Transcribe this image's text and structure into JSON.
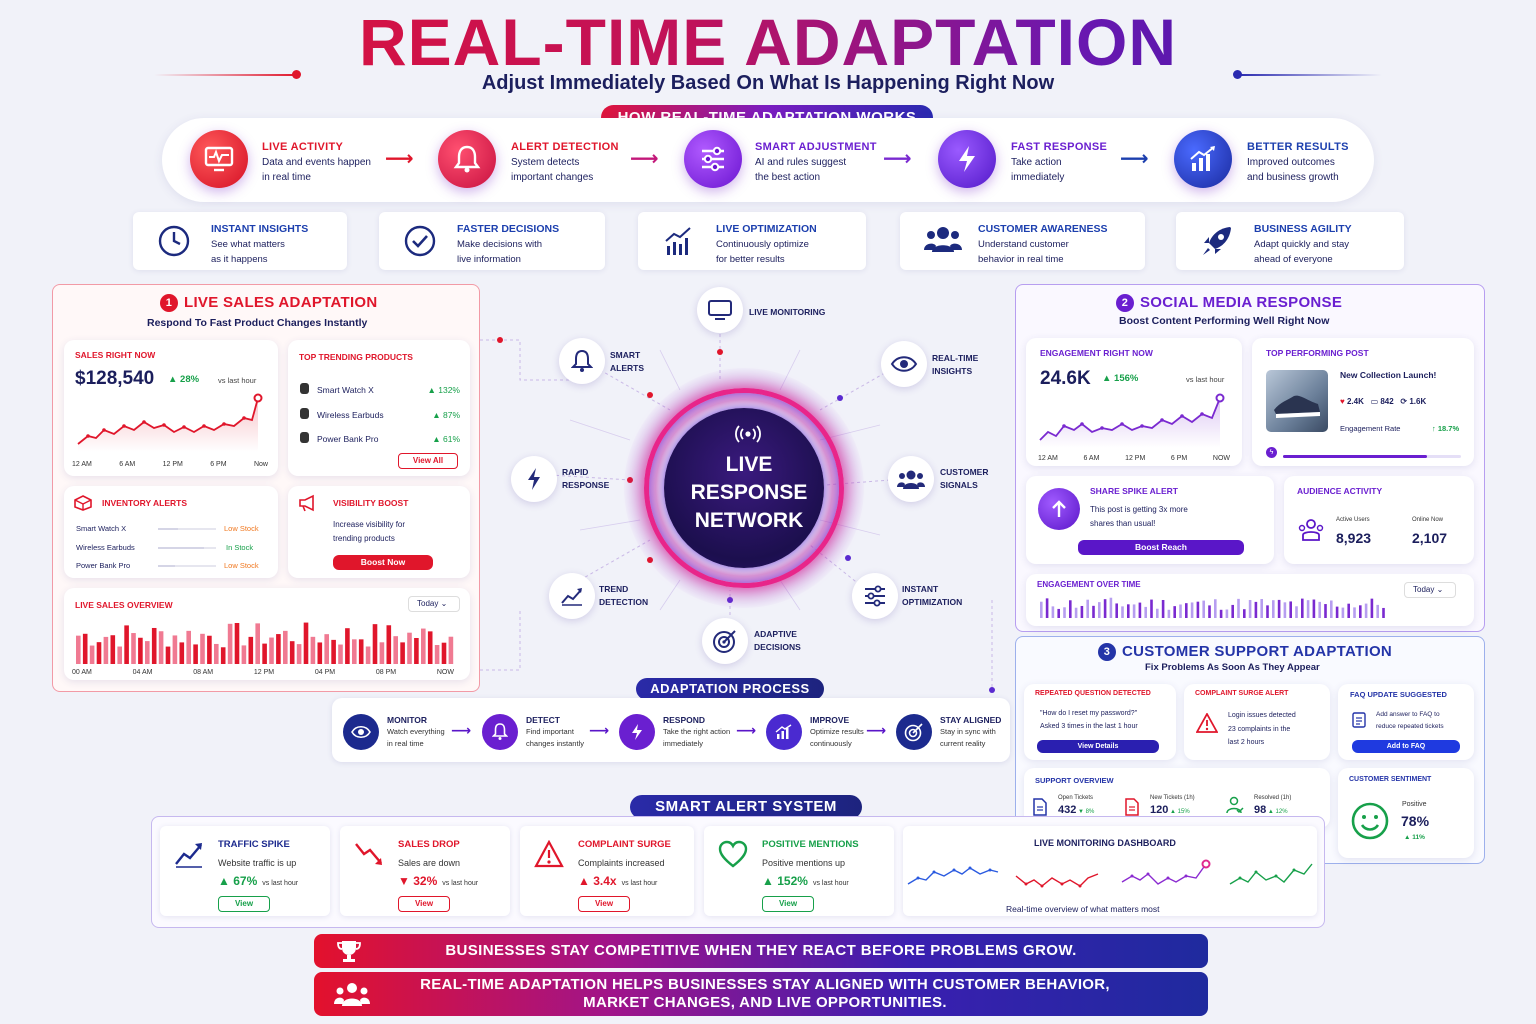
{
  "title": "REAL-TIME ADAPTATION",
  "subtitle": "Adjust Immediately Based On What Is Happening Right Now",
  "how_it_works": {
    "label": "HOW REAL-TIME ADAPTATION WORKS",
    "steps": [
      {
        "title": "LIVE ACTIVITY",
        "line1": "Data and events happen",
        "line2": "in real time",
        "icon": "monitor-pulse-icon"
      },
      {
        "title": "ALERT DETECTION",
        "line1": "System detects",
        "line2": "important changes",
        "icon": "bell-icon"
      },
      {
        "title": "SMART ADJUSTMENT",
        "line1": "AI and rules suggest",
        "line2": "the best action",
        "icon": "sliders-icon"
      },
      {
        "title": "FAST RESPONSE",
        "line1": "Take action",
        "line2": "immediately",
        "icon": "lightning-icon"
      },
      {
        "title": "BETTER RESULTS",
        "line1": "Improved outcomes",
        "line2": "and business growth",
        "icon": "growth-chart-icon"
      }
    ]
  },
  "benefits": [
    {
      "title": "INSTANT INSIGHTS",
      "line1": "See what matters",
      "line2": "as it happens",
      "icon": "clock-icon"
    },
    {
      "title": "FASTER DECISIONS",
      "line1": "Make decisions with",
      "line2": "live information",
      "icon": "check-circle-icon"
    },
    {
      "title": "LIVE OPTIMIZATION",
      "line1": "Continuously optimize",
      "line2": "for better results",
      "icon": "bar-chart-icon"
    },
    {
      "title": "CUSTOMER AWARENESS",
      "line1": "Understand customer",
      "line2": "behavior in real time",
      "icon": "users-icon"
    },
    {
      "title": "BUSINESS AGILITY",
      "line1": "Adapt quickly and stay",
      "line2": "ahead of everyone",
      "icon": "rocket-icon"
    }
  ],
  "sales": {
    "num": "1",
    "title": "LIVE SALES ADAPTATION",
    "subtitle": "Respond To Fast Product Changes Instantly",
    "sales_now": {
      "label": "SALES RIGHT NOW",
      "value": "$128,540",
      "change": "28%",
      "vs": "vs last hour",
      "x_labels": [
        "12 AM",
        "6 AM",
        "12 PM",
        "6 PM",
        "Now"
      ]
    },
    "trending": {
      "label": "TOP TRENDING PRODUCTS",
      "items": [
        {
          "name": "Smart Watch X",
          "change": "132%"
        },
        {
          "name": "Wireless Earbuds",
          "change": "87%"
        },
        {
          "name": "Power Bank Pro",
          "change": "61%"
        }
      ],
      "view_all": "View All"
    },
    "inventory": {
      "label": "INVENTORY ALERTS",
      "items": [
        {
          "name": "Smart Watch X",
          "status": "Low Stock",
          "level": 0.35
        },
        {
          "name": "Wireless Earbuds",
          "status": "In Stock",
          "level": 0.8
        },
        {
          "name": "Power Bank Pro",
          "status": "Low Stock",
          "level": 0.3
        }
      ]
    },
    "visibility": {
      "label": "VISIBILITY BOOST",
      "line1": "Increase visibility for",
      "line2": "trending products",
      "button": "Boost Now"
    },
    "overview": {
      "label": "LIVE SALES OVERVIEW",
      "period": "Today",
      "x_labels": [
        "00 AM",
        "04 AM",
        "08 AM",
        "12 PM",
        "04 PM",
        "08 PM",
        "NOW"
      ]
    }
  },
  "hub": {
    "center_line1": "LIVE",
    "center_line2": "RESPONSE",
    "center_line3": "NETWORK",
    "nodes": [
      {
        "line1": "LIVE MONITORING",
        "line2": "",
        "icon": "monitor-icon"
      },
      {
        "line1": "SMART",
        "line2": "ALERTS",
        "icon": "bell-icon"
      },
      {
        "line1": "REAL-TIME",
        "line2": "INSIGHTS",
        "icon": "eye-icon"
      },
      {
        "line1": "RAPID",
        "line2": "RESPONSE",
        "icon": "lightning-icon"
      },
      {
        "line1": "CUSTOMER",
        "line2": "SIGNALS",
        "icon": "users-icon"
      },
      {
        "line1": "TREND",
        "line2": "DETECTION",
        "icon": "trend-icon"
      },
      {
        "line1": "INSTANT",
        "line2": "OPTIMIZATION",
        "icon": "sliders-icon"
      },
      {
        "line1": "ADAPTIVE",
        "line2": "DECISIONS",
        "icon": "target-icon"
      }
    ]
  },
  "social": {
    "num": "2",
    "title": "SOCIAL MEDIA RESPONSE",
    "subtitle": "Boost Content Performing Well Right Now",
    "engagement": {
      "label": "ENGAGEMENT RIGHT NOW",
      "value": "24.6K",
      "change": "156%",
      "vs": "vs last hour",
      "x_labels": [
        "12 AM",
        "6 AM",
        "12 PM",
        "6 PM",
        "NOW"
      ]
    },
    "top_post": {
      "label": "TOP PERFORMING POST",
      "title": "New Collection Launch!",
      "likes": "2.4K",
      "comments": "842",
      "shares": "1.6K",
      "rate_label": "Engagement Rate",
      "rate": "18.7%"
    },
    "spike": {
      "label": "SHARE SPIKE ALERT",
      "line1": "This post is getting 3x more",
      "line2": "shares than usual!",
      "button": "Boost Reach"
    },
    "audience": {
      "label": "AUDIENCE ACTIVITY",
      "active_label": "Active Users",
      "active": "8,923",
      "online_label": "Online Now",
      "online": "2,107"
    },
    "over_time": {
      "label": "ENGAGEMENT OVER TIME",
      "period": "Today"
    }
  },
  "support": {
    "num": "3",
    "title": "CUSTOMER SUPPORT ADAPTATION",
    "subtitle": "Fix Problems As Soon As They Appear",
    "repeated": {
      "label": "REPEATED QUESTION DETECTED",
      "line1": "\"How do I reset my password?\"",
      "line2": "Asked 3 times in the last 1 hour",
      "button": "View Details"
    },
    "complaint": {
      "label": "COMPLAINT SURGE ALERT",
      "line1": "Login issues detected",
      "line2": "23 complaints in the",
      "line3": "last 2 hours"
    },
    "faq": {
      "label": "FAQ UPDATE SUGGESTED",
      "line1": "Add answer to FAQ to",
      "line2": "reduce repeated tickets",
      "button": "Add to FAQ"
    },
    "overview": {
      "label": "SUPPORT OVERVIEW",
      "items": [
        {
          "label": "Open Tickets",
          "value": "432",
          "change": "8%"
        },
        {
          "label": "New Tickets (1h)",
          "value": "120",
          "change": "15%"
        },
        {
          "label": "Resolved (1h)",
          "value": "98",
          "change": "12%"
        }
      ]
    },
    "sentiment": {
      "label": "CUSTOMER SENTIMENT",
      "kind": "Positive",
      "value": "78%",
      "change": "11%"
    }
  },
  "process": {
    "label": "ADAPTATION PROCESS",
    "steps": [
      {
        "title": "MONITOR",
        "line1": "Watch everything",
        "line2": "in real time"
      },
      {
        "title": "DETECT",
        "line1": "Find important",
        "line2": "changes instantly"
      },
      {
        "title": "RESPOND",
        "line1": "Take the right action",
        "line2": "immediately"
      },
      {
        "title": "IMPROVE",
        "line1": "Optimize results",
        "line2": "continuously"
      },
      {
        "title": "STAY ALIGNED",
        "line1": "Stay in sync with",
        "line2": "current reality"
      }
    ]
  },
  "alerts": {
    "label": "SMART ALERT SYSTEM",
    "cards": [
      {
        "title": "TRAFFIC SPIKE",
        "desc": "Website traffic is up",
        "value": "67%",
        "vs": "vs last hour",
        "button": "View",
        "color": "#1c2a8e",
        "dir": "up"
      },
      {
        "title": "SALES DROP",
        "desc": "Sales are down",
        "value": "32%",
        "vs": "vs last hour",
        "button": "View",
        "color": "#e0162b",
        "dir": "down"
      },
      {
        "title": "COMPLAINT SURGE",
        "desc": "Complaints increased",
        "value": "3.4x",
        "vs": "vs last hour",
        "button": "View",
        "color": "#e0162b",
        "dir": "up"
      },
      {
        "title": "POSITIVE MENTIONS",
        "desc": "Positive mentions up",
        "value": "152%",
        "vs": "vs last hour",
        "button": "View",
        "color": "#17a04a",
        "dir": "up"
      }
    ],
    "dashboard": {
      "title": "LIVE MONITORING DASHBOARD",
      "caption": "Real-time overview of what matters most"
    }
  },
  "banners": {
    "line1": "BUSINESSES STAY COMPETITIVE WHEN THEY REACT BEFORE PROBLEMS GROW.",
    "line2a": "REAL-TIME ADAPTATION HELPS BUSINESSES STAY ALIGNED WITH CUSTOMER BEHAVIOR,",
    "line2b": "MARKET CHANGES, AND LIVE OPPORTUNITIES."
  },
  "colors": {
    "red": "#e0162b",
    "purple": "#6a1fd0",
    "navy": "#1c1f5e",
    "green": "#17a04a"
  }
}
